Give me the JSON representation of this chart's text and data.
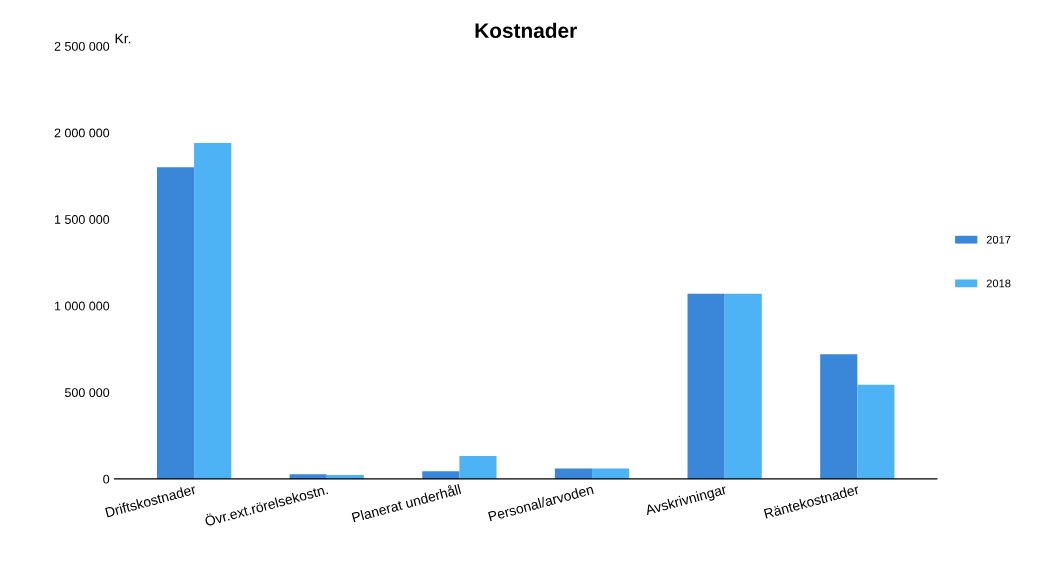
{
  "chart_data": {
    "type": "bar",
    "title": "Kostnader",
    "ylabel": "Kr.",
    "categories": [
      "Driftskostnader",
      "Övr.ext.rörelsekostn.",
      "Planerat underhåll",
      "Personal/arvoden",
      "Avskrivningar",
      "Räntekostnader"
    ],
    "series": [
      {
        "name": "2017",
        "color": "#3a86d9",
        "values": [
          1800000,
          27000,
          44000,
          60000,
          1070000,
          720000
        ]
      },
      {
        "name": "2018",
        "color": "#4db3f5",
        "values": [
          1940000,
          22000,
          132000,
          60000,
          1070000,
          544000
        ]
      }
    ],
    "ylim": [
      0,
      2500000
    ],
    "yticks": [
      {
        "value": 0,
        "label": "0"
      },
      {
        "value": 500000,
        "label": "500 000"
      },
      {
        "value": 1000000,
        "label": "1 000 000"
      },
      {
        "value": 1500000,
        "label": "1 500 000"
      },
      {
        "value": 2000000,
        "label": "2 000 000"
      },
      {
        "value": 2500000,
        "label": "2 500 000"
      }
    ],
    "grid": false,
    "legend": "right"
  }
}
